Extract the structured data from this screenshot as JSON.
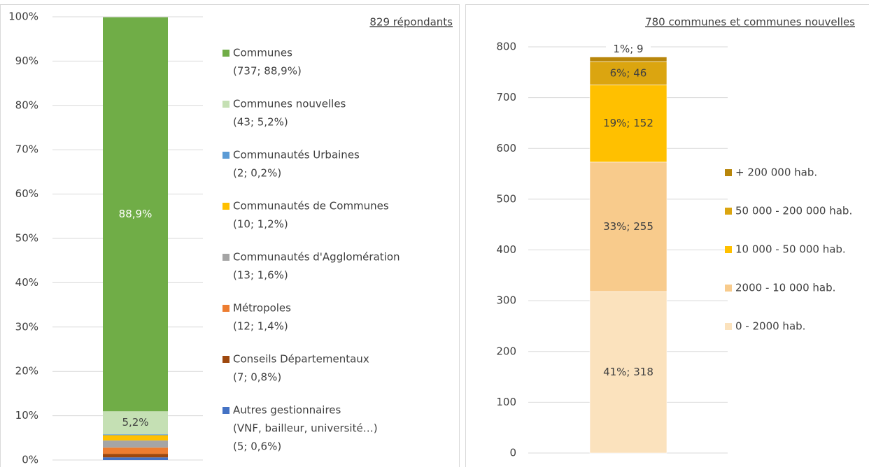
{
  "chart_data": [
    {
      "type": "stacked_bar",
      "subtitle": "829 répondants",
      "ylim": [
        0,
        100
      ],
      "yticks": [
        {
          "value": 0,
          "label": "0%"
        },
        {
          "value": 10,
          "label": "10%"
        },
        {
          "value": 20,
          "label": "20%"
        },
        {
          "value": 30,
          "label": "30%"
        },
        {
          "value": 40,
          "label": "40%"
        },
        {
          "value": 50,
          "label": "50%"
        },
        {
          "value": 60,
          "label": "60%"
        },
        {
          "value": 70,
          "label": "70%"
        },
        {
          "value": 80,
          "label": "80%"
        },
        {
          "value": 90,
          "label": "90%"
        },
        {
          "value": 100,
          "label": "100%"
        }
      ],
      "grid": true,
      "series": [
        {
          "name": "Autres gestionnaires",
          "detail": [
            "(VNF, bailleur, université…)",
            "(5; 0,6%)"
          ],
          "color": "#4472c4",
          "values": [
            0.6
          ]
        },
        {
          "name": "Conseils Départementaux",
          "detail": [
            "(7; 0,8%)"
          ],
          "color": "#9e480e",
          "values": [
            0.8
          ]
        },
        {
          "name": "Métropoles",
          "detail": [
            "(12; 1,4%)"
          ],
          "color": "#ed7d31",
          "values": [
            1.4
          ]
        },
        {
          "name": "Communautés d'Agglomération",
          "detail": [
            "(13; 1,6%)"
          ],
          "color": "#a5a5a5",
          "values": [
            1.6
          ]
        },
        {
          "name": "Communautés de Communes",
          "detail": [
            "(10; 1,2%)"
          ],
          "color": "#ffc000",
          "values": [
            1.2
          ]
        },
        {
          "name": "Communautés Urbaines",
          "detail": [
            "(2; 0,2%)"
          ],
          "color": "#5b9bd5",
          "values": [
            0.2
          ]
        },
        {
          "name": "Communes nouvelles",
          "detail": [
            "(43; 5,2%)"
          ],
          "color": "#c5e0b4",
          "values": [
            5.2
          ],
          "value_labels": [
            "5,2%"
          ]
        },
        {
          "name": "Communes",
          "detail": [
            "(737; 88,9%)"
          ],
          "color": "#70ad47",
          "values": [
            88.9
          ],
          "value_labels": [
            "88,9%"
          ]
        }
      ]
    },
    {
      "type": "stacked_bar",
      "subtitle": "780 communes et communes nouvelles",
      "ylim": [
        0,
        800
      ],
      "yticks": [
        0,
        100,
        200,
        300,
        400,
        500,
        600,
        700,
        800
      ],
      "grid": true,
      "series": [
        {
          "name": "0 - 2000 hab.",
          "color": "#fbe2bd",
          "values": [
            318
          ],
          "value_labels": [
            "41%; 318"
          ]
        },
        {
          "name": "2000 - 10 000 hab.",
          "color": "#f8cb8c",
          "values": [
            255
          ],
          "value_labels": [
            "33%; 255"
          ]
        },
        {
          "name": "10 000 - 50 000 hab.",
          "color": "#ffc000",
          "values": [
            152
          ],
          "value_labels": [
            "19%; 152"
          ]
        },
        {
          "name": "50 000 - 200 000 hab.",
          "color": "#dba510",
          "values": [
            46
          ],
          "value_labels": [
            "6%; 46"
          ]
        },
        {
          "name": "+ 200 000 hab.",
          "color": "#b8860b",
          "values": [
            9
          ],
          "value_labels": [
            "1%; 9"
          ]
        }
      ]
    }
  ]
}
